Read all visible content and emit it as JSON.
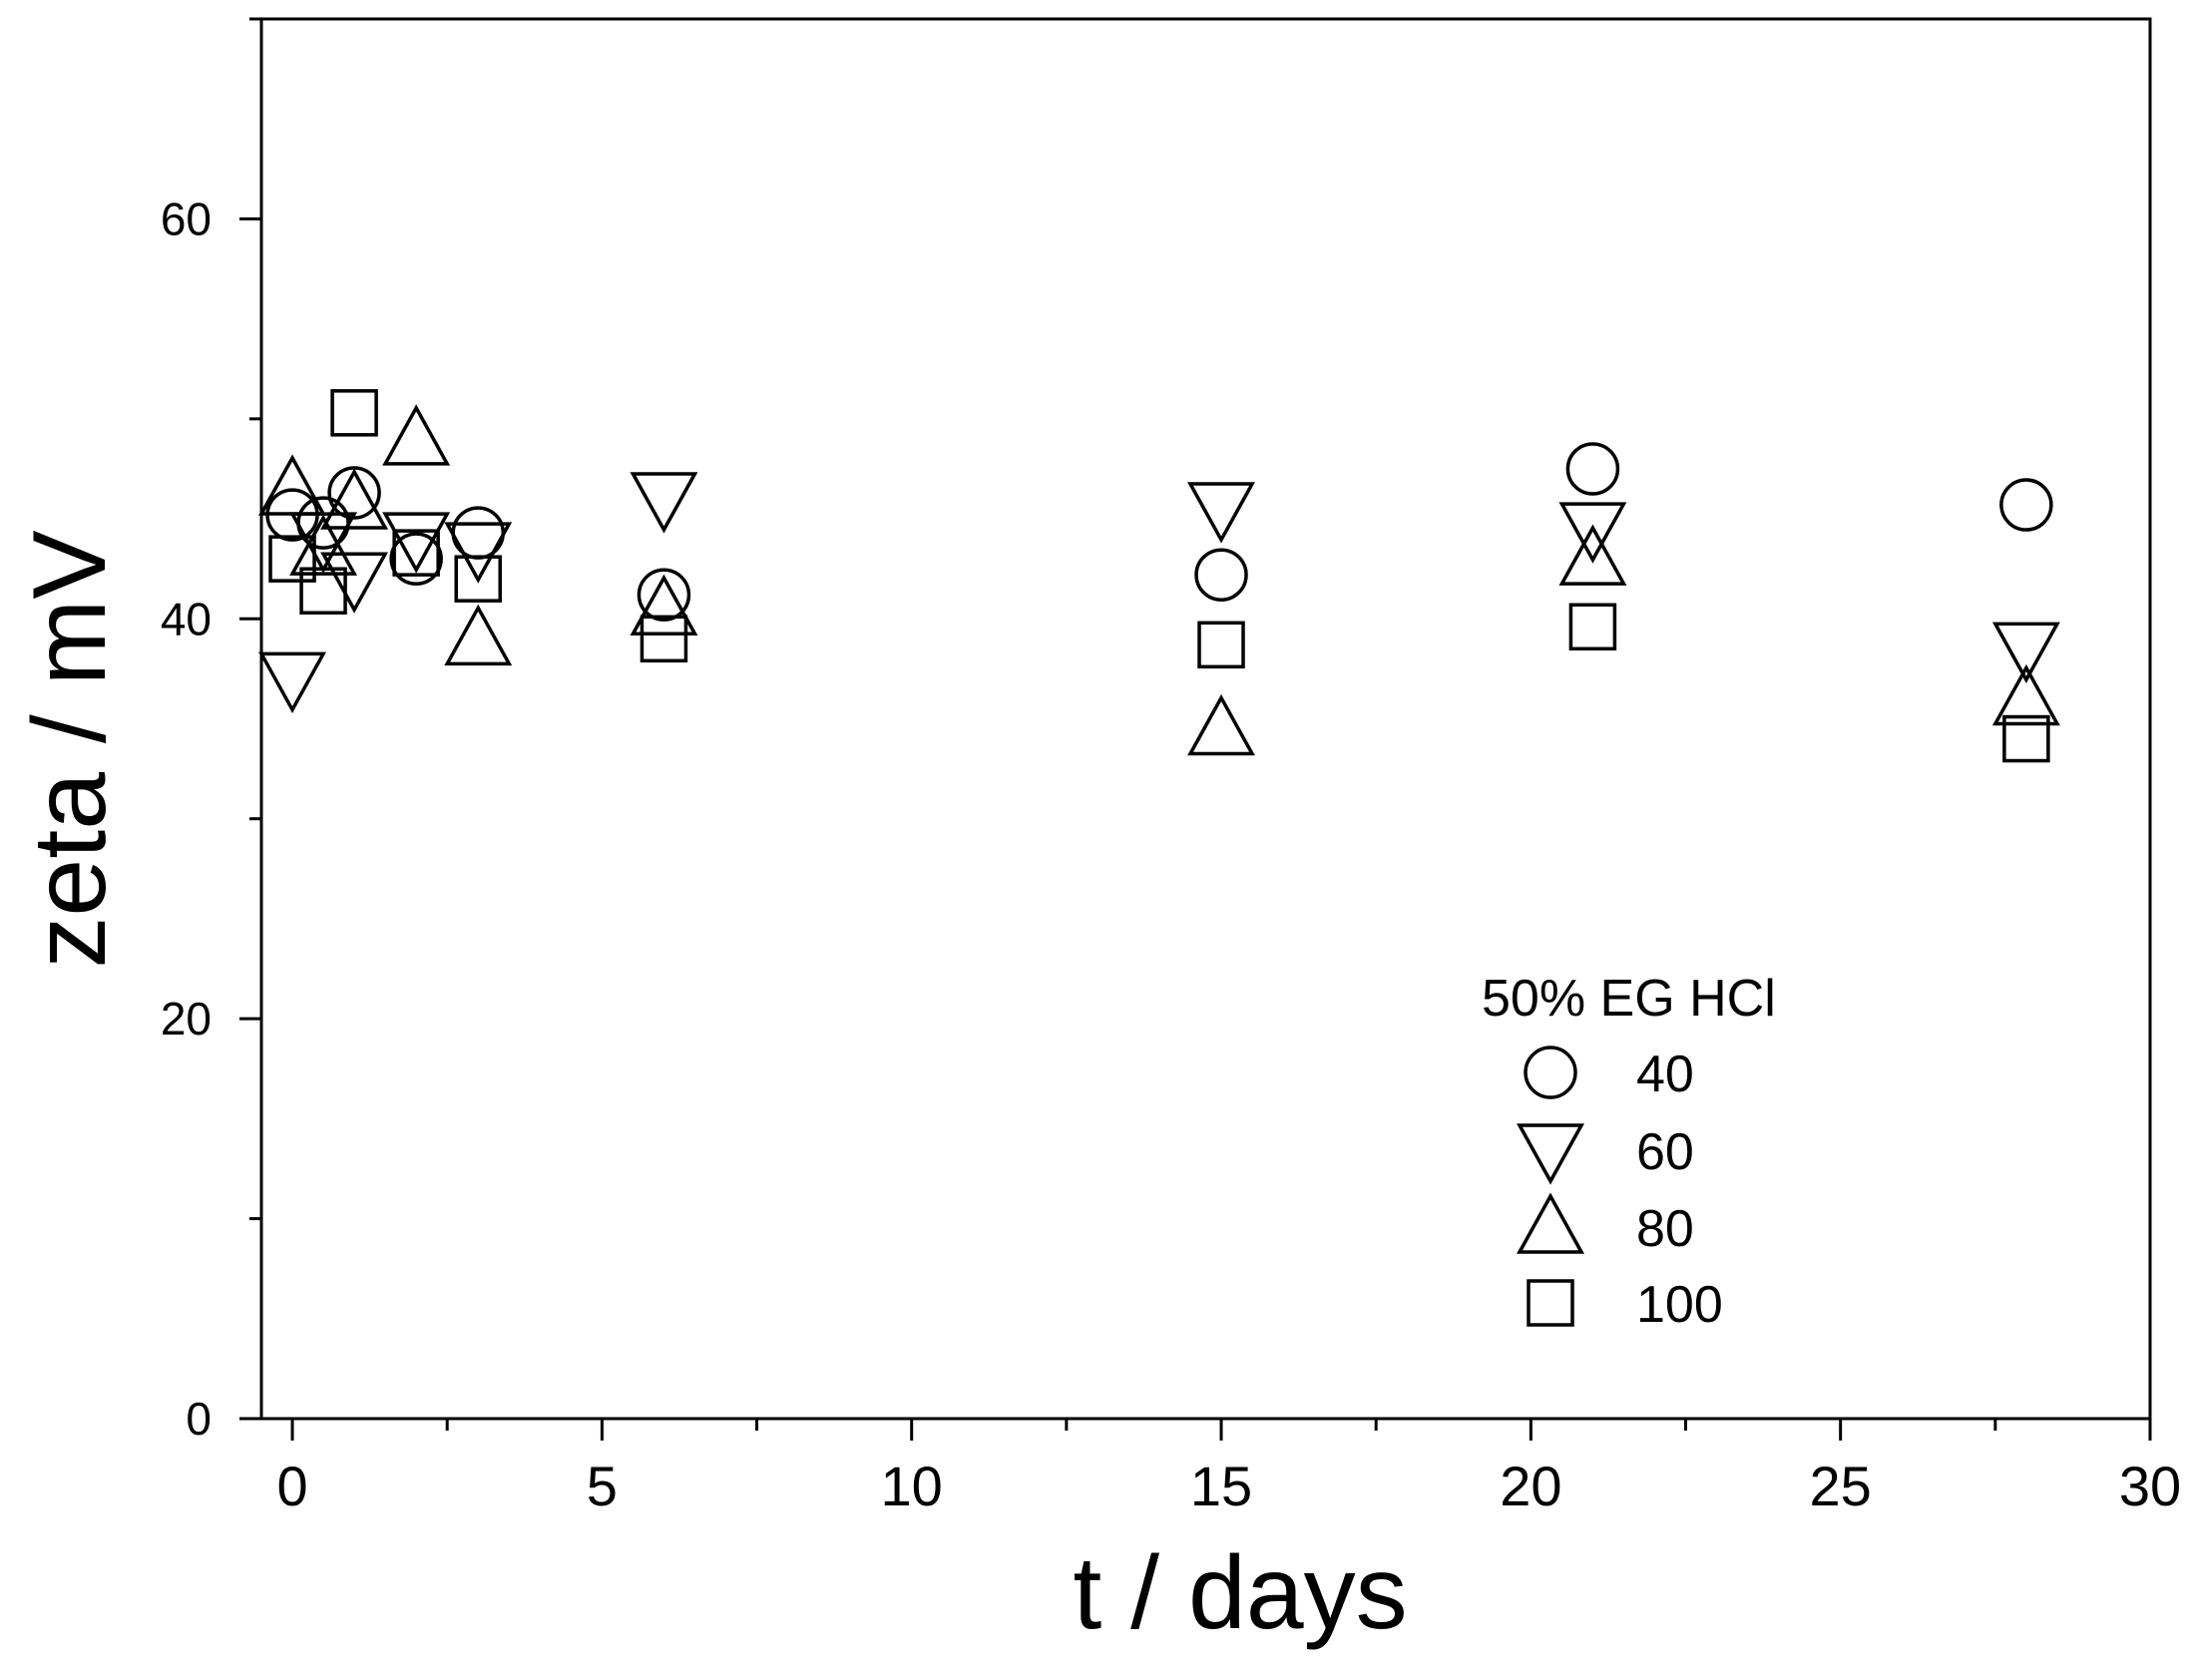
{
  "chart_data": {
    "type": "scatter",
    "title": "",
    "xlabel": "t / days",
    "ylabel": "zeta / mV",
    "xlim": [
      -0.5,
      30
    ],
    "ylim": [
      0,
      70
    ],
    "x_ticks": [
      0,
      5,
      10,
      15,
      20,
      25,
      30
    ],
    "x_tick_labels": [
      "0",
      "5",
      "10",
      "15",
      "20",
      "25",
      "30"
    ],
    "x_minor_ticks": [
      2.5,
      7.5,
      12.5,
      17.5,
      22.5,
      27.5
    ],
    "y_ticks": [
      0,
      20,
      40,
      60
    ],
    "y_tick_labels": [
      "0",
      "20",
      "40",
      "60"
    ],
    "y_minor_ticks": [
      10,
      30,
      50,
      70
    ],
    "grid": false,
    "legend": {
      "title": "50% EG HCl",
      "position": "lower-right",
      "entries": [
        {
          "label": "40",
          "marker": "circle"
        },
        {
          "label": "60",
          "marker": "triangle-down"
        },
        {
          "label": "80",
          "marker": "triangle-up"
        },
        {
          "label": "100",
          "marker": "square"
        }
      ]
    },
    "series": [
      {
        "name": "40",
        "marker": "circle",
        "points": [
          {
            "x": 0,
            "y": 45.2
          },
          {
            "x": 0.5,
            "y": 44.8
          },
          {
            "x": 1,
            "y": 46.3
          },
          {
            "x": 2,
            "y": 43.0
          },
          {
            "x": 3,
            "y": 44.3
          },
          {
            "x": 6,
            "y": 41.2
          },
          {
            "x": 15,
            "y": 42.2
          },
          {
            "x": 21,
            "y": 47.5
          },
          {
            "x": 28,
            "y": 45.7
          }
        ]
      },
      {
        "name": "60",
        "marker": "triangle-down",
        "points": [
          {
            "x": 0,
            "y": 37.0
          },
          {
            "x": 0.5,
            "y": 44.0
          },
          {
            "x": 1,
            "y": 42.0
          },
          {
            "x": 2,
            "y": 44.0
          },
          {
            "x": 3,
            "y": 43.5
          },
          {
            "x": 6,
            "y": 46.0
          },
          {
            "x": 15,
            "y": 45.5
          },
          {
            "x": 21,
            "y": 44.5
          },
          {
            "x": 28,
            "y": 38.5
          }
        ]
      },
      {
        "name": "80",
        "marker": "triangle-up",
        "points": [
          {
            "x": 0,
            "y": 46.5
          },
          {
            "x": 0.5,
            "y": 43.5
          },
          {
            "x": 1,
            "y": 45.8
          },
          {
            "x": 2,
            "y": 49.0
          },
          {
            "x": 3,
            "y": 39.0
          },
          {
            "x": 6,
            "y": 40.5
          },
          {
            "x": 15,
            "y": 34.5
          },
          {
            "x": 21,
            "y": 43.0
          },
          {
            "x": 28,
            "y": 36.0
          }
        ]
      },
      {
        "name": "100",
        "marker": "square",
        "points": [
          {
            "x": 0,
            "y": 43.0
          },
          {
            "x": 0.5,
            "y": 41.4
          },
          {
            "x": 1,
            "y": 50.3
          },
          {
            "x": 2,
            "y": 43.3
          },
          {
            "x": 3,
            "y": 42.0
          },
          {
            "x": 6,
            "y": 39.0
          },
          {
            "x": 15,
            "y": 38.7
          },
          {
            "x": 21,
            "y": 39.6
          },
          {
            "x": 28,
            "y": 34.0
          }
        ]
      }
    ]
  }
}
